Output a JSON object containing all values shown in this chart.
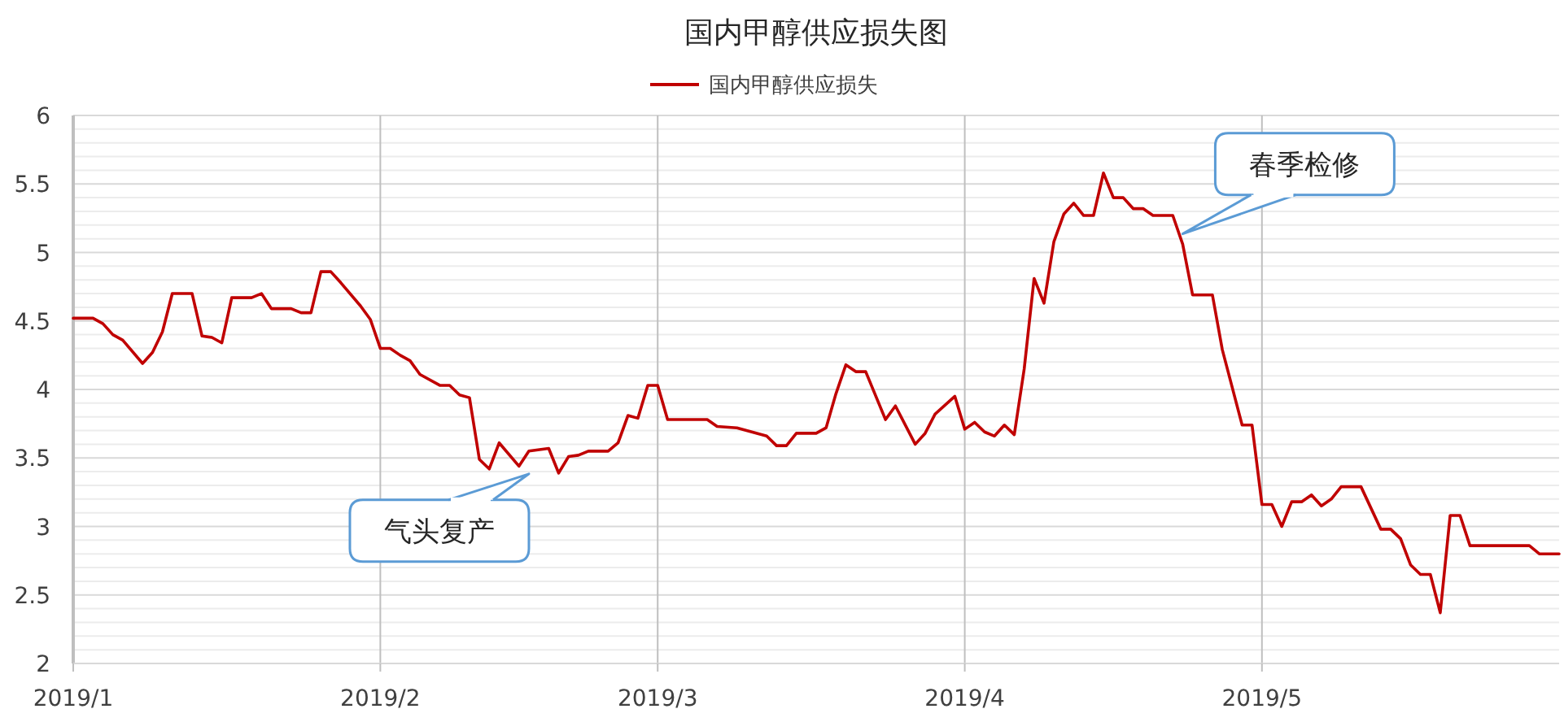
{
  "chart_data": {
    "type": "line",
    "title": "国内甲醇供应损失图",
    "x": [
      "2019-01-01",
      "2019-01-03",
      "2019-01-04",
      "2019-01-05",
      "2019-01-06",
      "2019-01-08",
      "2019-01-09",
      "2019-01-10",
      "2019-01-11",
      "2019-01-13",
      "2019-01-14",
      "2019-01-15",
      "2019-01-16",
      "2019-01-17",
      "2019-01-19",
      "2019-01-20",
      "2019-01-21",
      "2019-01-23",
      "2019-01-24",
      "2019-01-25",
      "2019-01-26",
      "2019-01-27",
      "2019-01-28",
      "2019-01-30",
      "2019-01-31",
      "2019-02-01",
      "2019-02-02",
      "2019-02-03",
      "2019-02-04",
      "2019-02-05",
      "2019-02-07",
      "2019-02-08",
      "2019-02-09",
      "2019-02-10",
      "2019-02-11",
      "2019-02-12",
      "2019-02-13",
      "2019-02-15",
      "2019-02-16",
      "2019-02-18",
      "2019-02-19",
      "2019-02-20",
      "2019-02-21",
      "2019-02-22",
      "2019-02-24",
      "2019-02-25",
      "2019-02-26",
      "2019-02-27",
      "2019-02-28",
      "2019-03-01",
      "2019-03-02",
      "2019-03-06",
      "2019-03-07",
      "2019-03-09",
      "2019-03-12",
      "2019-03-13",
      "2019-03-14",
      "2019-03-15",
      "2019-03-17",
      "2019-03-18",
      "2019-03-19",
      "2019-03-20",
      "2019-03-21",
      "2019-03-22",
      "2019-03-24",
      "2019-03-25",
      "2019-03-27",
      "2019-03-28",
      "2019-03-29",
      "2019-03-31",
      "2019-04-01",
      "2019-04-02",
      "2019-04-03",
      "2019-04-04",
      "2019-04-05",
      "2019-04-06",
      "2019-04-07",
      "2019-04-08",
      "2019-04-09",
      "2019-04-10",
      "2019-04-11",
      "2019-04-12",
      "2019-04-13",
      "2019-04-14",
      "2019-04-15",
      "2019-04-16",
      "2019-04-17",
      "2019-04-18",
      "2019-04-19",
      "2019-04-20",
      "2019-04-22",
      "2019-04-23",
      "2019-04-24",
      "2019-04-26",
      "2019-04-27",
      "2019-04-29",
      "2019-04-30",
      "2019-05-01",
      "2019-05-02",
      "2019-05-03",
      "2019-05-04",
      "2019-05-05",
      "2019-05-06",
      "2019-05-07",
      "2019-05-08",
      "2019-05-09",
      "2019-05-11",
      "2019-05-13",
      "2019-05-14",
      "2019-05-15",
      "2019-05-16",
      "2019-05-17",
      "2019-05-18",
      "2019-05-19",
      "2019-05-20",
      "2019-05-21",
      "2019-05-22",
      "2019-05-28",
      "2019-05-29",
      "2019-05-31"
    ],
    "series": [
      {
        "name": "国内甲醇供应损失",
        "color": "#c00000",
        "values": [
          4.52,
          4.52,
          4.48,
          4.4,
          4.36,
          4.19,
          4.27,
          4.42,
          4.7,
          4.7,
          4.39,
          4.38,
          4.34,
          4.67,
          4.67,
          4.7,
          4.59,
          4.59,
          4.56,
          4.56,
          4.86,
          4.86,
          4.78,
          4.61,
          4.51,
          4.3,
          4.3,
          4.25,
          4.21,
          4.11,
          4.03,
          4.03,
          3.96,
          3.94,
          3.49,
          3.42,
          3.61,
          3.44,
          3.55,
          3.57,
          3.39,
          3.51,
          3.52,
          3.55,
          3.55,
          3.61,
          3.81,
          3.79,
          4.03,
          4.03,
          3.78,
          3.78,
          3.73,
          3.72,
          3.66,
          3.59,
          3.59,
          3.68,
          3.68,
          3.72,
          3.97,
          4.18,
          4.13,
          4.13,
          3.78,
          3.88,
          3.6,
          3.68,
          3.82,
          3.95,
          3.71,
          3.76,
          3.69,
          3.66,
          3.74,
          3.67,
          4.15,
          4.81,
          4.63,
          5.08,
          5.28,
          5.36,
          5.27,
          5.27,
          5.58,
          5.4,
          5.4,
          5.32,
          5.32,
          5.27,
          5.27,
          5.06,
          4.69,
          4.69,
          4.29,
          3.74,
          3.74,
          3.16,
          3.16,
          3.0,
          3.18,
          3.18,
          3.23,
          3.15,
          3.2,
          3.29,
          3.29,
          2.98,
          2.98,
          2.91,
          2.72,
          2.65,
          2.65,
          2.37,
          3.08,
          3.08,
          2.86,
          2.86,
          2.8,
          2.8
        ]
      }
    ],
    "xlim": [
      "2019-01-01",
      "2019-05-31"
    ],
    "xticks": [
      {
        "value": "2019-01-01",
        "label": "2019/1"
      },
      {
        "value": "2019-02-01",
        "label": "2019/2"
      },
      {
        "value": "2019-03-01",
        "label": "2019/3"
      },
      {
        "value": "2019-04-01",
        "label": "2019/4"
      },
      {
        "value": "2019-05-01",
        "label": "2019/5"
      }
    ],
    "ylim": [
      2,
      6
    ],
    "yticks": [
      2,
      2.5,
      3,
      3.5,
      4,
      4.5,
      5,
      5.5,
      6
    ],
    "grid": true,
    "legend": "top",
    "annotations": [
      {
        "text": "气头复产",
        "x": "2019-02-16",
        "y": 3.55
      },
      {
        "text": "春季检修",
        "x": "2019-04-23",
        "y": 5.1
      }
    ]
  }
}
